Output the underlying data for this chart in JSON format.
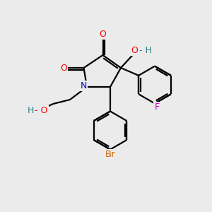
{
  "bg_color": "#ebebeb",
  "atom_colors": {
    "O": "#ff0000",
    "N": "#0000cc",
    "F": "#cc00cc",
    "Br": "#cc6600",
    "C": "#000000",
    "H": "#2f8080"
  },
  "line_color": "#000000",
  "line_width": 1.6
}
